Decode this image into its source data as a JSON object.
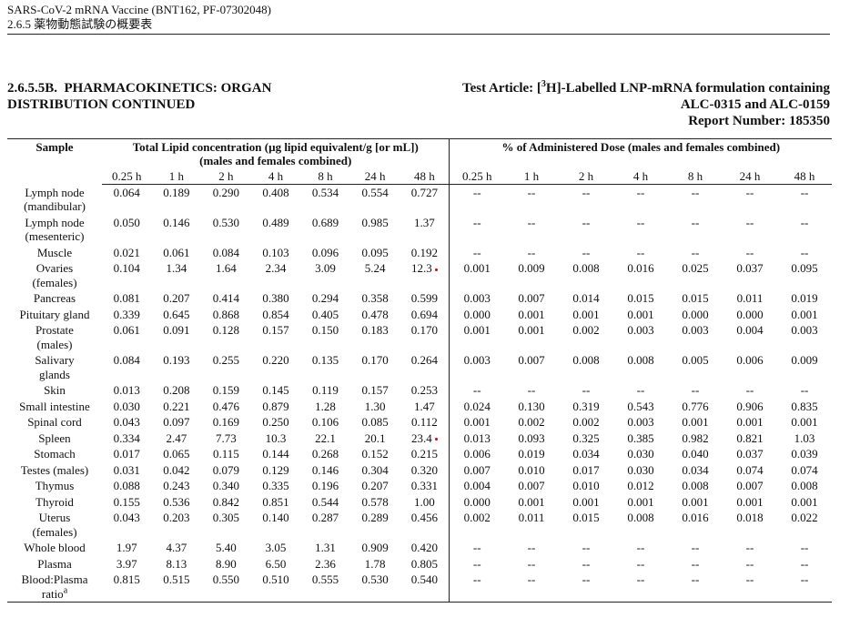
{
  "header": {
    "line1": "SARS-CoV-2 mRNA Vaccine (BNT162, PF-07302048)",
    "line2": "2.6.5 薬物動態試験の概要表"
  },
  "title": {
    "left": [
      "2.6.5.5B.  PHARMACOKINETICS: ORGAN",
      "DISTRIBUTION CONTINUED"
    ],
    "right": {
      "pre": "Test Article: [",
      "superscript": "3",
      "post": "H]-Labelled LNP-mRNA formulation containing",
      "line2": "ALC-0315 and ALC-0159",
      "report": "Report Number: 185350"
    }
  },
  "table": {
    "sample_header": "Sample",
    "lipid_header": [
      "Total Lipid concentration (µg lipid equivalent/g [or mL])",
      "(males and females combined)"
    ],
    "dose_header": "% of Administered Dose (males and females combined)",
    "times": [
      "0.25 h",
      "1 h",
      "2 h",
      "4 h",
      "8 h",
      "24 h",
      "48 h"
    ],
    "rows": [
      {
        "sample": [
          "Lymph node",
          "(mandibular)"
        ],
        "lipid": [
          "0.064",
          "0.189",
          "0.290",
          "0.408",
          "0.534",
          "0.554",
          "0.727"
        ],
        "dose": [
          "--",
          "--",
          "--",
          "--",
          "--",
          "--",
          "--"
        ]
      },
      {
        "sample": [
          "Lymph node",
          "(mesenteric)"
        ],
        "lipid": [
          "0.050",
          "0.146",
          "0.530",
          "0.489",
          "0.689",
          "0.985",
          "1.37"
        ],
        "dose": [
          "--",
          "--",
          "--",
          "--",
          "--",
          "--",
          "--"
        ]
      },
      {
        "sample": [
          "Muscle"
        ],
        "lipid": [
          "0.021",
          "0.061",
          "0.084",
          "0.103",
          "0.096",
          "0.095",
          "0.192"
        ],
        "dose": [
          "--",
          "--",
          "--",
          "--",
          "--",
          "--",
          "--"
        ]
      },
      {
        "sample": [
          "Ovaries",
          "(females)"
        ],
        "lipid": [
          "0.104",
          "1.34",
          "1.64",
          "2.34",
          "3.09",
          "5.24",
          "12.3"
        ],
        "dose": [
          "0.001",
          "0.009",
          "0.008",
          "0.016",
          "0.025",
          "0.037",
          "0.095"
        ]
      },
      {
        "sample": [
          "Pancreas"
        ],
        "lipid": [
          "0.081",
          "0.207",
          "0.414",
          "0.380",
          "0.294",
          "0.358",
          "0.599"
        ],
        "dose": [
          "0.003",
          "0.007",
          "0.014",
          "0.015",
          "0.015",
          "0.011",
          "0.019"
        ]
      },
      {
        "sample": [
          "Pituitary gland"
        ],
        "lipid": [
          "0.339",
          "0.645",
          "0.868",
          "0.854",
          "0.405",
          "0.478",
          "0.694"
        ],
        "dose": [
          "0.000",
          "0.001",
          "0.001",
          "0.001",
          "0.000",
          "0.000",
          "0.001"
        ]
      },
      {
        "sample": [
          "Prostate",
          "(males)"
        ],
        "lipid": [
          "0.061",
          "0.091",
          "0.128",
          "0.157",
          "0.150",
          "0.183",
          "0.170"
        ],
        "dose": [
          "0.001",
          "0.001",
          "0.002",
          "0.003",
          "0.003",
          "0.004",
          "0.003"
        ]
      },
      {
        "sample": [
          "Salivary",
          "glands"
        ],
        "lipid": [
          "0.084",
          "0.193",
          "0.255",
          "0.220",
          "0.135",
          "0.170",
          "0.264"
        ],
        "dose": [
          "0.003",
          "0.007",
          "0.008",
          "0.008",
          "0.005",
          "0.006",
          "0.009"
        ]
      },
      {
        "sample": [
          "Skin"
        ],
        "lipid": [
          "0.013",
          "0.208",
          "0.159",
          "0.145",
          "0.119",
          "0.157",
          "0.253"
        ],
        "dose": [
          "--",
          "--",
          "--",
          "--",
          "--",
          "--",
          "--"
        ]
      },
      {
        "sample": [
          "Small intestine"
        ],
        "lipid": [
          "0.030",
          "0.221",
          "0.476",
          "0.879",
          "1.28",
          "1.30",
          "1.47"
        ],
        "dose": [
          "0.024",
          "0.130",
          "0.319",
          "0.543",
          "0.776",
          "0.906",
          "0.835"
        ]
      },
      {
        "sample": [
          "Spinal cord"
        ],
        "lipid": [
          "0.043",
          "0.097",
          "0.169",
          "0.250",
          "0.106",
          "0.085",
          "0.112"
        ],
        "dose": [
          "0.001",
          "0.002",
          "0.002",
          "0.003",
          "0.001",
          "0.001",
          "0.001"
        ]
      },
      {
        "sample": [
          "Spleen"
        ],
        "lipid": [
          "0.334",
          "2.47",
          "7.73",
          "10.3",
          "22.1",
          "20.1",
          "23.4"
        ],
        "dose": [
          "0.013",
          "0.093",
          "0.325",
          "0.385",
          "0.982",
          "0.821",
          "1.03"
        ]
      },
      {
        "sample": [
          "Stomach"
        ],
        "lipid": [
          "0.017",
          "0.065",
          "0.115",
          "0.144",
          "0.268",
          "0.152",
          "0.215"
        ],
        "dose": [
          "0.006",
          "0.019",
          "0.034",
          "0.030",
          "0.040",
          "0.037",
          "0.039"
        ]
      },
      {
        "sample": [
          "Testes (males)"
        ],
        "lipid": [
          "0.031",
          "0.042",
          "0.079",
          "0.129",
          "0.146",
          "0.304",
          "0.320"
        ],
        "dose": [
          "0.007",
          "0.010",
          "0.017",
          "0.030",
          "0.034",
          "0.074",
          "0.074"
        ]
      },
      {
        "sample": [
          "Thymus"
        ],
        "lipid": [
          "0.088",
          "0.243",
          "0.340",
          "0.335",
          "0.196",
          "0.207",
          "0.331"
        ],
        "dose": [
          "0.004",
          "0.007",
          "0.010",
          "0.012",
          "0.008",
          "0.007",
          "0.008"
        ]
      },
      {
        "sample": [
          "Thyroid"
        ],
        "lipid": [
          "0.155",
          "0.536",
          "0.842",
          "0.851",
          "0.544",
          "0.578",
          "1.00"
        ],
        "dose": [
          "0.000",
          "0.001",
          "0.001",
          "0.001",
          "0.001",
          "0.001",
          "0.001"
        ]
      },
      {
        "sample": [
          "Uterus",
          "(females)"
        ],
        "lipid": [
          "0.043",
          "0.203",
          "0.305",
          "0.140",
          "0.287",
          "0.289",
          "0.456"
        ],
        "dose": [
          "0.002",
          "0.011",
          "0.015",
          "0.008",
          "0.016",
          "0.018",
          "0.022"
        ]
      },
      {
        "sample": [
          "Whole blood"
        ],
        "lipid": [
          "1.97",
          "4.37",
          "5.40",
          "3.05",
          "1.31",
          "0.909",
          "0.420"
        ],
        "dose": [
          "--",
          "--",
          "--",
          "--",
          "--",
          "--",
          "--"
        ]
      },
      {
        "sample": [
          "Plasma"
        ],
        "lipid": [
          "3.97",
          "8.13",
          "8.90",
          "6.50",
          "2.36",
          "1.78",
          "0.805"
        ],
        "dose": [
          "--",
          "--",
          "--",
          "--",
          "--",
          "--",
          "--"
        ]
      },
      {
        "sample": [
          "Blood:Plasma",
          "ratio"
        ],
        "note": "a",
        "lipid": [
          "0.815",
          "0.515",
          "0.550",
          "0.510",
          "0.555",
          "0.530",
          "0.540"
        ],
        "dose": [
          "--",
          "--",
          "--",
          "--",
          "--",
          "--",
          "--"
        ]
      }
    ]
  }
}
